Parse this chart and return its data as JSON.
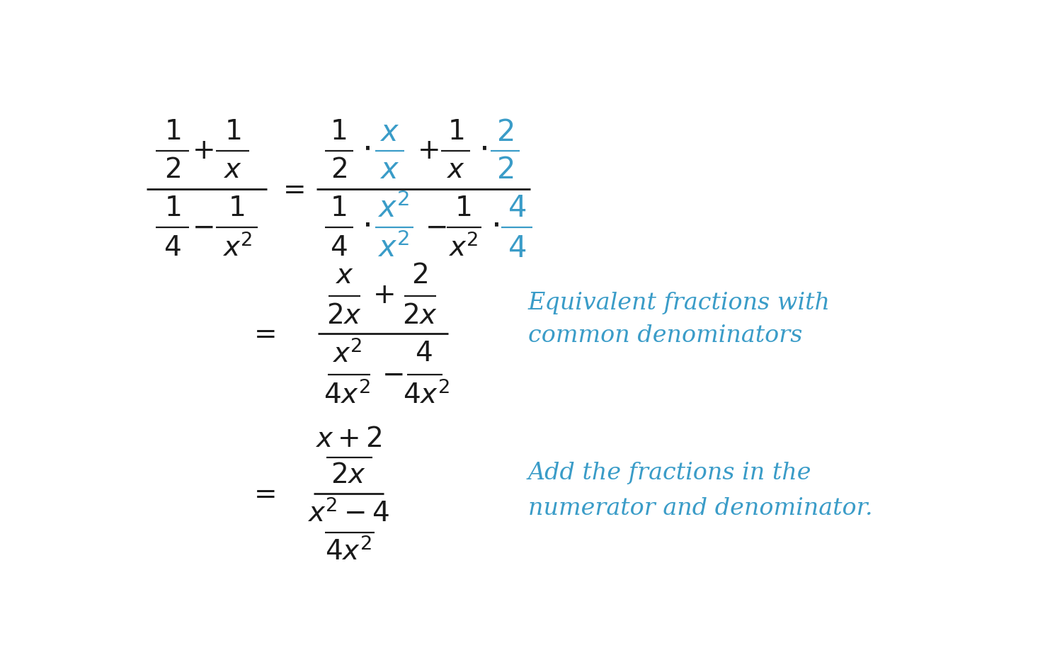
{
  "bg_color": "#ffffff",
  "black": "#1a1a1a",
  "blue": "#3a9cc8",
  "fig_width": 15.0,
  "fig_height": 9.32,
  "annotation1": "Equivalent fractions with",
  "annotation2": "common denominators",
  "annotation3": "Add the fractions in the",
  "annotation4": "numerator and denominator."
}
